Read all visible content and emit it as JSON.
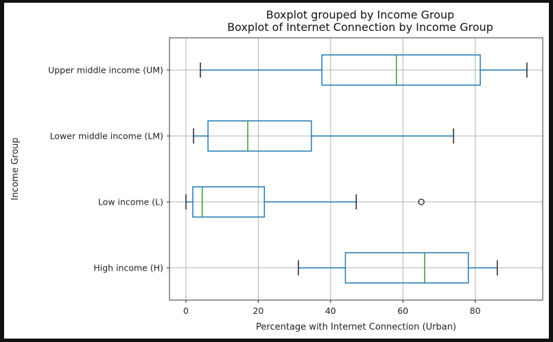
{
  "suptitle": "Boxplot grouped by Income Group",
  "title": "Boxplot of Internet Connection by Income Group",
  "xlabel": "Percentage with Internet Connection (Urban)",
  "ylabel": "Income Group",
  "colors": {
    "box": "#1f77b4",
    "median": "#2ca02c",
    "whisker_cap": "#000000",
    "grid": "#b0b0b0"
  },
  "chart_data": {
    "type": "boxplot",
    "orientation": "horizontal",
    "title": "Boxplot grouped by Income Group / Boxplot of Internet Connection by Income Group",
    "xlabel": "Percentage with Internet Connection (Urban)",
    "ylabel": "Income Group",
    "xlim": [
      -4.5,
      99
    ],
    "xticks": [
      0,
      20,
      40,
      60,
      80
    ],
    "grid": true,
    "categories": [
      "Upper middle income (UM)",
      "Lower middle income (LM)",
      "Low income (L)",
      "High income (H)"
    ],
    "series": [
      {
        "name": "Upper middle income (UM)",
        "whisker_low": 4,
        "q1": 37.6,
        "median": 58.2,
        "q3": 81.4,
        "whisker_high": 94.3,
        "outliers": []
      },
      {
        "name": "Lower middle income (LM)",
        "whisker_low": 2.1,
        "q1": 6.1,
        "median": 17.1,
        "q3": 34.7,
        "whisker_high": 74.0,
        "outliers": []
      },
      {
        "name": "Low income (L)",
        "whisker_low": 0,
        "q1": 1.9,
        "median": 4.5,
        "q3": 21.7,
        "whisker_high": 47.1,
        "outliers": [
          65.1
        ]
      },
      {
        "name": "High income (H)",
        "whisker_low": 31.1,
        "q1": 44.1,
        "median": 66.0,
        "q3": 78.1,
        "whisker_high": 86.1,
        "outliers": []
      }
    ]
  }
}
